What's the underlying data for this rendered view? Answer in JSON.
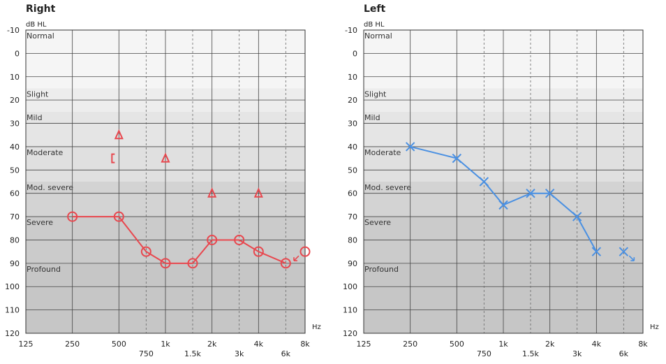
{
  "chart_data": [
    {
      "type": "line",
      "title": "Right",
      "ylabel": "dB HL",
      "xlabel": "Hz",
      "y_inverted": true,
      "ylim": [
        -10,
        120
      ],
      "y_ticks": [
        "-10",
        "0",
        "10",
        "20",
        "30",
        "40",
        "50",
        "60",
        "70",
        "80",
        "90",
        "100",
        "110",
        "120"
      ],
      "x_scale": "log",
      "x_ticks_main": [
        {
          "hz": 125,
          "label": "125"
        },
        {
          "hz": 250,
          "label": "250"
        },
        {
          "hz": 500,
          "label": "500"
        },
        {
          "hz": 1000,
          "label": "1k"
        },
        {
          "hz": 2000,
          "label": "2k"
        },
        {
          "hz": 4000,
          "label": "4k"
        },
        {
          "hz": 8000,
          "label": "8k"
        }
      ],
      "x_ticks_inter": [
        {
          "hz": 750,
          "label": "750"
        },
        {
          "hz": 1500,
          "label": "1.5k"
        },
        {
          "hz": 3000,
          "label": "3k"
        },
        {
          "hz": 6000,
          "label": "6k"
        }
      ],
      "bands": [
        {
          "label": "Normal",
          "from": -10,
          "to": 15,
          "color": "#f5f5f5"
        },
        {
          "label": "Slight",
          "from": 15,
          "to": 25,
          "color": "#ededed"
        },
        {
          "label": "Mild",
          "from": 25,
          "to": 40,
          "color": "#e5e5e5"
        },
        {
          "label": "Moderate",
          "from": 40,
          "to": 55,
          "color": "#e0e0e0"
        },
        {
          "label": "Mod. severe",
          "from": 55,
          "to": 70,
          "color": "#d3d3d3"
        },
        {
          "label": "Severe",
          "from": 70,
          "to": 90,
          "color": "#cbcbcb"
        },
        {
          "label": "Profound",
          "from": 90,
          "to": 120,
          "color": "#c6c6c6"
        }
      ],
      "series": [
        {
          "marker": "circle",
          "color": "#e8474e",
          "connected": true,
          "points": [
            {
              "hz": 250,
              "db": 70
            },
            {
              "hz": 500,
              "db": 70
            },
            {
              "hz": 750,
              "db": 85
            },
            {
              "hz": 1000,
              "db": 90
            },
            {
              "hz": 1500,
              "db": 90
            },
            {
              "hz": 2000,
              "db": 80
            },
            {
              "hz": 3000,
              "db": 80
            },
            {
              "hz": 4000,
              "db": 85
            },
            {
              "hz": 6000,
              "db": 90
            }
          ]
        },
        {
          "marker": "circle-no-response",
          "color": "#e8474e",
          "connected": false,
          "points": [
            {
              "hz": 8000,
              "db": 85
            }
          ]
        },
        {
          "marker": "triangle",
          "color": "#e8474e",
          "connected": false,
          "points": [
            {
              "hz": 500,
              "db": 35
            },
            {
              "hz": 1000,
              "db": 45
            },
            {
              "hz": 2000,
              "db": 60
            },
            {
              "hz": 4000,
              "db": 60
            }
          ]
        },
        {
          "marker": "bracket",
          "color": "#e8474e",
          "connected": false,
          "points": [
            {
              "hz": 500,
              "db": 45
            }
          ]
        }
      ]
    },
    {
      "type": "line",
      "title": "Left",
      "ylabel": "dB HL",
      "xlabel": "Hz",
      "y_inverted": true,
      "ylim": [
        -10,
        120
      ],
      "y_ticks": [
        "-10",
        "0",
        "10",
        "20",
        "30",
        "40",
        "50",
        "60",
        "70",
        "80",
        "90",
        "100",
        "110",
        "120"
      ],
      "x_scale": "log",
      "x_ticks_main": [
        {
          "hz": 125,
          "label": "125"
        },
        {
          "hz": 250,
          "label": "250"
        },
        {
          "hz": 500,
          "label": "500"
        },
        {
          "hz": 1000,
          "label": "1k"
        },
        {
          "hz": 2000,
          "label": "2k"
        },
        {
          "hz": 4000,
          "label": "4k"
        },
        {
          "hz": 8000,
          "label": "8k"
        }
      ],
      "x_ticks_inter": [
        {
          "hz": 750,
          "label": "750"
        },
        {
          "hz": 1500,
          "label": "1.5k"
        },
        {
          "hz": 3000,
          "label": "3k"
        },
        {
          "hz": 6000,
          "label": "6k"
        }
      ],
      "bands": [
        {
          "label": "Normal",
          "from": -10,
          "to": 15,
          "color": "#f5f5f5"
        },
        {
          "label": "Slight",
          "from": 15,
          "to": 25,
          "color": "#ededed"
        },
        {
          "label": "Mild",
          "from": 25,
          "to": 40,
          "color": "#e5e5e5"
        },
        {
          "label": "Moderate",
          "from": 40,
          "to": 55,
          "color": "#e0e0e0"
        },
        {
          "label": "Mod. severe",
          "from": 55,
          "to": 70,
          "color": "#d3d3d3"
        },
        {
          "label": "Severe",
          "from": 70,
          "to": 90,
          "color": "#cbcbcb"
        },
        {
          "label": "Profound",
          "from": 90,
          "to": 120,
          "color": "#c6c6c6"
        }
      ],
      "series": [
        {
          "marker": "x",
          "color": "#4a90e2",
          "connected": true,
          "points": [
            {
              "hz": 250,
              "db": 40
            },
            {
              "hz": 500,
              "db": 45
            },
            {
              "hz": 750,
              "db": 55
            },
            {
              "hz": 1000,
              "db": 65
            },
            {
              "hz": 1500,
              "db": 60
            },
            {
              "hz": 2000,
              "db": 60
            },
            {
              "hz": 3000,
              "db": 70
            },
            {
              "hz": 4000,
              "db": 85
            }
          ]
        },
        {
          "marker": "x-no-response",
          "color": "#4a90e2",
          "connected": false,
          "points": [
            {
              "hz": 6000,
              "db": 85
            }
          ]
        }
      ]
    }
  ]
}
